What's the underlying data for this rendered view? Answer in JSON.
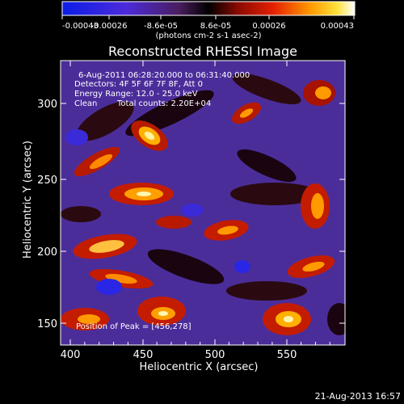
{
  "colorbar": {
    "tick_labels": [
      "-0.00043",
      "-0.00026",
      "-8.6e-05",
      "8.6e-05",
      "0.00026",
      "0.00043"
    ],
    "units": "(photons cm-2 s-1 asec-2)",
    "colormap": "blue-purple-black-red-orange-yellow-white"
  },
  "plot": {
    "title": "Reconstructed RHESSI Image",
    "annotations": {
      "time_range": "6-Aug-2011 06:28:20.000 to 06:31:40.000",
      "detectors": "Detectors: 4F 5F 6F 7F 8F, Att 0",
      "energy_range": "Energy Range: 12.0 - 25.0 keV",
      "algorithm": "Clean",
      "total_counts": "Total counts: 2.20E+04",
      "peak_position": "Position of Peak = [456,278]"
    },
    "x_axis": {
      "label": "Heliocentric X (arcsec)",
      "tick_labels": [
        "400",
        "450",
        "500",
        "550"
      ]
    },
    "y_axis": {
      "label": "Heliocentric Y (arcsec)",
      "tick_labels": [
        "150",
        "200",
        "250",
        "300"
      ]
    }
  },
  "footer": {
    "timestamp": "21-Aug-2013 16:57"
  }
}
